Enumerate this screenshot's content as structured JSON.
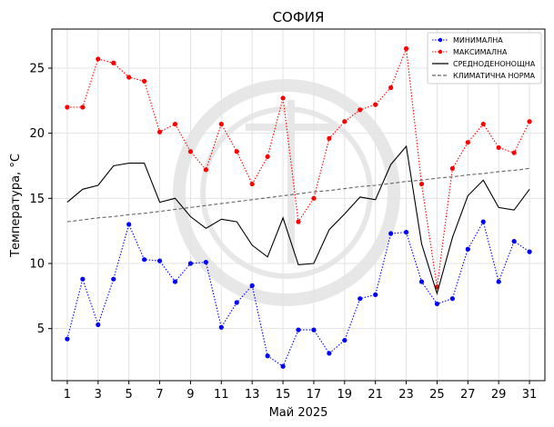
{
  "chart_data": {
    "type": "line",
    "title": "СОФИЯ",
    "xlabel": "Май  2025",
    "ylabel": "Температура,  °C",
    "xlim": [
      0,
      32
    ],
    "ylim": [
      1,
      28
    ],
    "grid": true,
    "legend_position": "top-right",
    "x": [
      1,
      2,
      3,
      4,
      5,
      6,
      7,
      8,
      9,
      10,
      11,
      12,
      13,
      14,
      15,
      16,
      17,
      18,
      19,
      20,
      21,
      22,
      23,
      24,
      25,
      26,
      27,
      28,
      29,
      30,
      31
    ],
    "x_ticks": [
      1,
      3,
      5,
      7,
      9,
      11,
      13,
      15,
      17,
      19,
      21,
      23,
      25,
      27,
      29,
      31
    ],
    "y_ticks": [
      5,
      10,
      15,
      20,
      25
    ],
    "series": [
      {
        "name": "МИНИМАЛНА",
        "color": "#0000ff",
        "style": "dotted-markers",
        "values": [
          4.2,
          8.8,
          5.3,
          8.8,
          13.0,
          10.3,
          10.2,
          8.6,
          10.0,
          10.1,
          5.1,
          7.0,
          8.3,
          2.9,
          2.1,
          4.9,
          4.9,
          3.1,
          4.1,
          7.3,
          7.6,
          12.3,
          12.4,
          8.6,
          6.9,
          7.3,
          11.1,
          13.2,
          8.6,
          11.7,
          10.9
        ]
      },
      {
        "name": "МАКСИМАЛНА",
        "color": "#ff0000",
        "style": "dotted-markers",
        "values": [
          22.0,
          22.0,
          25.7,
          25.4,
          24.3,
          24.0,
          20.1,
          20.7,
          18.6,
          17.2,
          20.7,
          18.6,
          16.1,
          18.2,
          22.7,
          13.2,
          15.0,
          19.6,
          20.9,
          21.8,
          22.2,
          23.5,
          26.5,
          16.1,
          8.2,
          17.3,
          19.3,
          20.7,
          18.9,
          18.5,
          20.9
        ]
      },
      {
        "name": "СРЕДНОДЕНОНОЩНА",
        "color": "#000000",
        "style": "solid",
        "values": [
          14.7,
          15.7,
          16.0,
          17.5,
          17.7,
          17.7,
          14.7,
          15.0,
          13.6,
          12.7,
          13.4,
          13.2,
          11.4,
          10.5,
          13.5,
          9.9,
          10.0,
          12.6,
          13.8,
          15.1,
          14.9,
          17.6,
          19.0,
          11.5,
          7.7,
          12.0,
          15.2,
          16.4,
          14.3,
          14.1,
          15.7
        ]
      },
      {
        "name": "КЛИМАТИЧНА НОРМА",
        "color": "#666666",
        "style": "dashed",
        "values": [
          13.2,
          13.35,
          13.5,
          13.6,
          13.75,
          13.85,
          14.0,
          14.15,
          14.3,
          14.45,
          14.6,
          14.75,
          14.9,
          15.05,
          15.2,
          15.35,
          15.5,
          15.6,
          15.75,
          15.9,
          16.0,
          16.15,
          16.3,
          16.4,
          16.55,
          16.65,
          16.8,
          16.9,
          17.05,
          17.15,
          17.3
        ]
      }
    ]
  }
}
